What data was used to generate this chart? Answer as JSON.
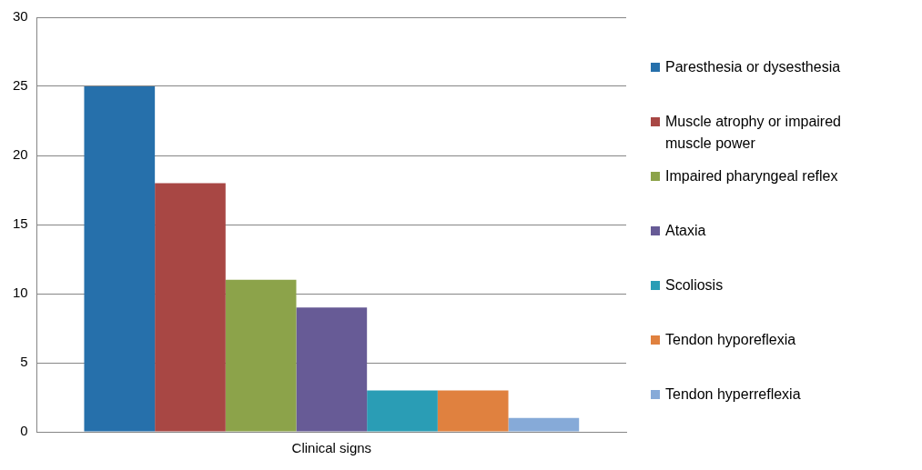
{
  "chart_data": {
    "type": "bar",
    "categories": [
      "Clinical signs"
    ],
    "series": [
      {
        "name": "Paresthesia or dysesthesia",
        "color": "#2670ab",
        "values": [
          25
        ]
      },
      {
        "name": "Muscle atrophy or impaired muscle power",
        "color": "#a84744",
        "values": [
          18
        ]
      },
      {
        "name": "Impaired pharyngeal reflex",
        "color": "#8ca34a",
        "values": [
          11
        ]
      },
      {
        "name": "Ataxia",
        "color": "#675b96",
        "values": [
          9
        ]
      },
      {
        "name": "Scoliosis",
        "color": "#2a9db5",
        "values": [
          3
        ]
      },
      {
        "name": "Tendon hyporeflexia",
        "color": "#e0813f",
        "values": [
          3
        ]
      },
      {
        "name": "Tendon hyperreflexia",
        "color": "#86aad8",
        "values": [
          1
        ]
      }
    ],
    "ylim": [
      0,
      30
    ],
    "yticks": [
      0,
      5,
      10,
      15,
      20,
      25,
      30
    ],
    "grid": "y",
    "legend": "right"
  }
}
